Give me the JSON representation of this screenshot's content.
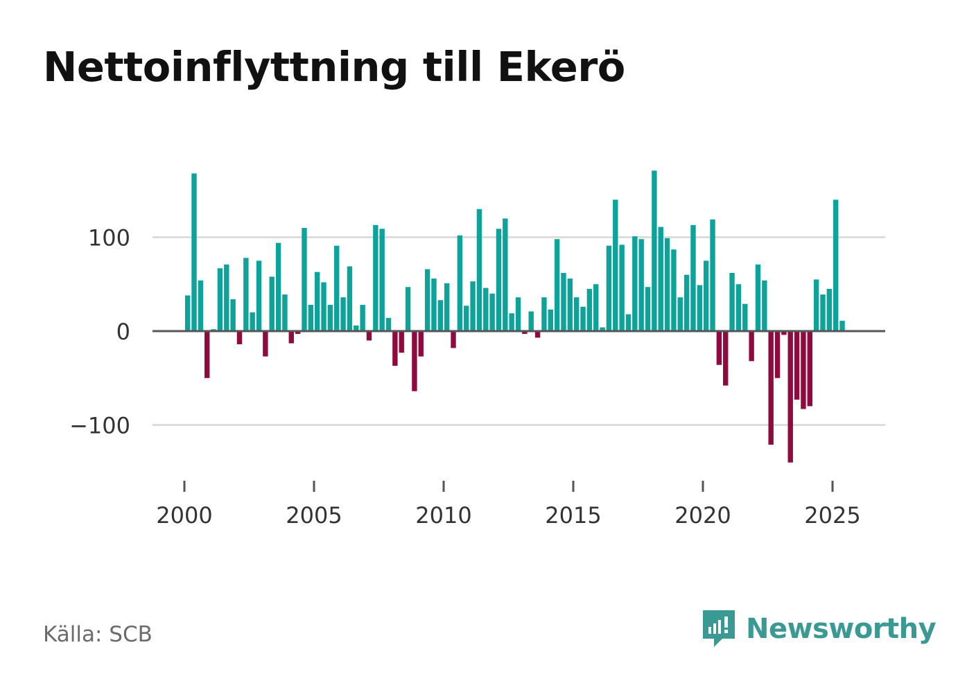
{
  "title": "Nettoinflyttning till Ekerö",
  "source": "Källa: SCB",
  "brand": {
    "name": "Newsworthy",
    "icon": "newsworthy-logo-icon"
  },
  "colors": {
    "positive": "#0ea39a",
    "negative": "#8f0a3e",
    "grid": "#dddddd",
    "zero": "#555555",
    "text": "#333333",
    "brand": "#3a9a93"
  },
  "chart_data": {
    "type": "bar",
    "title": "Nettoinflyttning till Ekerö",
    "xlabel": "",
    "ylabel": "",
    "frequency": "quarterly",
    "start": 2000.0,
    "ylim": [
      -155,
      180
    ],
    "yticks": [
      -100,
      0,
      100
    ],
    "ytick_labels": [
      "−100",
      "0",
      "100"
    ],
    "xticks": [
      2000,
      2005,
      2010,
      2015,
      2020,
      2025
    ],
    "xtick_labels": [
      "2000",
      "2005",
      "2010",
      "2015",
      "2020",
      "2025"
    ],
    "values": [
      38,
      168,
      54,
      -50,
      2,
      67,
      71,
      34,
      -14,
      78,
      20,
      75,
      -27,
      58,
      94,
      39,
      -13,
      -3,
      110,
      28,
      63,
      52,
      28,
      91,
      36,
      69,
      6,
      28,
      -10,
      113,
      109,
      14,
      -37,
      -23,
      47,
      -64,
      -27,
      66,
      56,
      33,
      51,
      -18,
      102,
      27,
      53,
      130,
      46,
      40,
      109,
      120,
      19,
      36,
      -3,
      21,
      -7,
      36,
      23,
      98,
      62,
      56,
      36,
      26,
      45,
      50,
      4,
      91,
      140,
      92,
      18,
      101,
      98,
      47,
      171,
      111,
      99,
      87,
      36,
      60,
      113,
      49,
      75,
      119,
      -36,
      -58,
      62,
      50,
      29,
      -32,
      71,
      54,
      -121,
      -50,
      -4,
      -140,
      -73,
      -83,
      -80,
      55,
      39,
      45,
      140,
      11
    ]
  }
}
